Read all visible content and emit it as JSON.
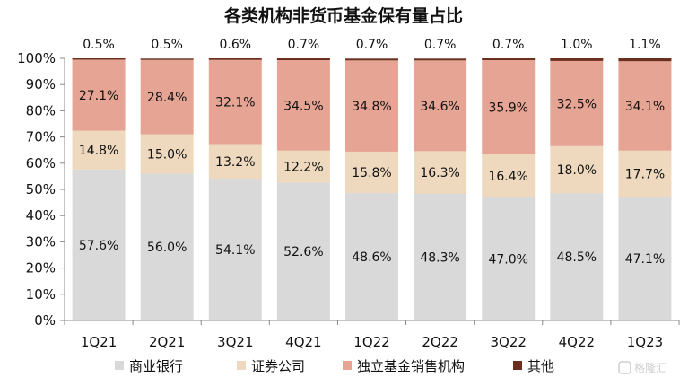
{
  "chart_data": {
    "type": "bar",
    "stacked": true,
    "title": "各类机构非货币基金保有量占比",
    "categories": [
      "1Q21",
      "2Q21",
      "3Q21",
      "4Q21",
      "1Q22",
      "2Q22",
      "3Q22",
      "4Q22",
      "1Q23"
    ],
    "series": [
      {
        "name": "商业银行",
        "color": "#d9d9d9",
        "values": [
          57.6,
          56.0,
          54.1,
          52.6,
          48.6,
          48.3,
          47.0,
          48.5,
          47.1
        ]
      },
      {
        "name": "证券公司",
        "color": "#eed9bf",
        "values": [
          14.8,
          15.0,
          13.2,
          12.2,
          15.8,
          16.3,
          16.4,
          18.0,
          17.7
        ]
      },
      {
        "name": "独立基金销售机构",
        "color": "#e6a594",
        "values": [
          27.1,
          28.4,
          32.1,
          34.5,
          34.8,
          34.6,
          35.9,
          32.5,
          34.1
        ]
      },
      {
        "name": "其他",
        "color": "#6b2e1f",
        "values": [
          0.5,
          0.5,
          0.6,
          0.7,
          0.7,
          0.7,
          0.7,
          1.0,
          1.1
        ]
      }
    ],
    "labels": {
      "商业银行": [
        "57.6%",
        "56.0%",
        "54.1%",
        "52.6%",
        "48.6%",
        "48.3%",
        "47.0%",
        "48.5%",
        "47.1%"
      ],
      "证券公司": [
        "14.8%",
        "15.0%",
        "13.2%",
        "12.2%",
        "15.8%",
        "16.3%",
        "16.4%",
        "18.0%",
        "17.7%"
      ],
      "独立基金销售机构": [
        "27.1%",
        "28.4%",
        "32.1%",
        "34.5%",
        "34.8%",
        "34.6%",
        "35.9%",
        "32.5%",
        "34.1%"
      ],
      "其他": [
        "0.5%",
        "0.5%",
        "0.6%",
        "0.7%",
        "0.7%",
        "0.7%",
        "0.7%",
        "1.0%",
        "1.1%"
      ]
    },
    "y_ticks": [
      "0%",
      "10%",
      "20%",
      "30%",
      "40%",
      "50%",
      "60%",
      "70%",
      "80%",
      "90%",
      "100%"
    ],
    "ylim": [
      0,
      100
    ],
    "grid": false,
    "legend_position": "bottom"
  },
  "watermark": "格隆汇"
}
